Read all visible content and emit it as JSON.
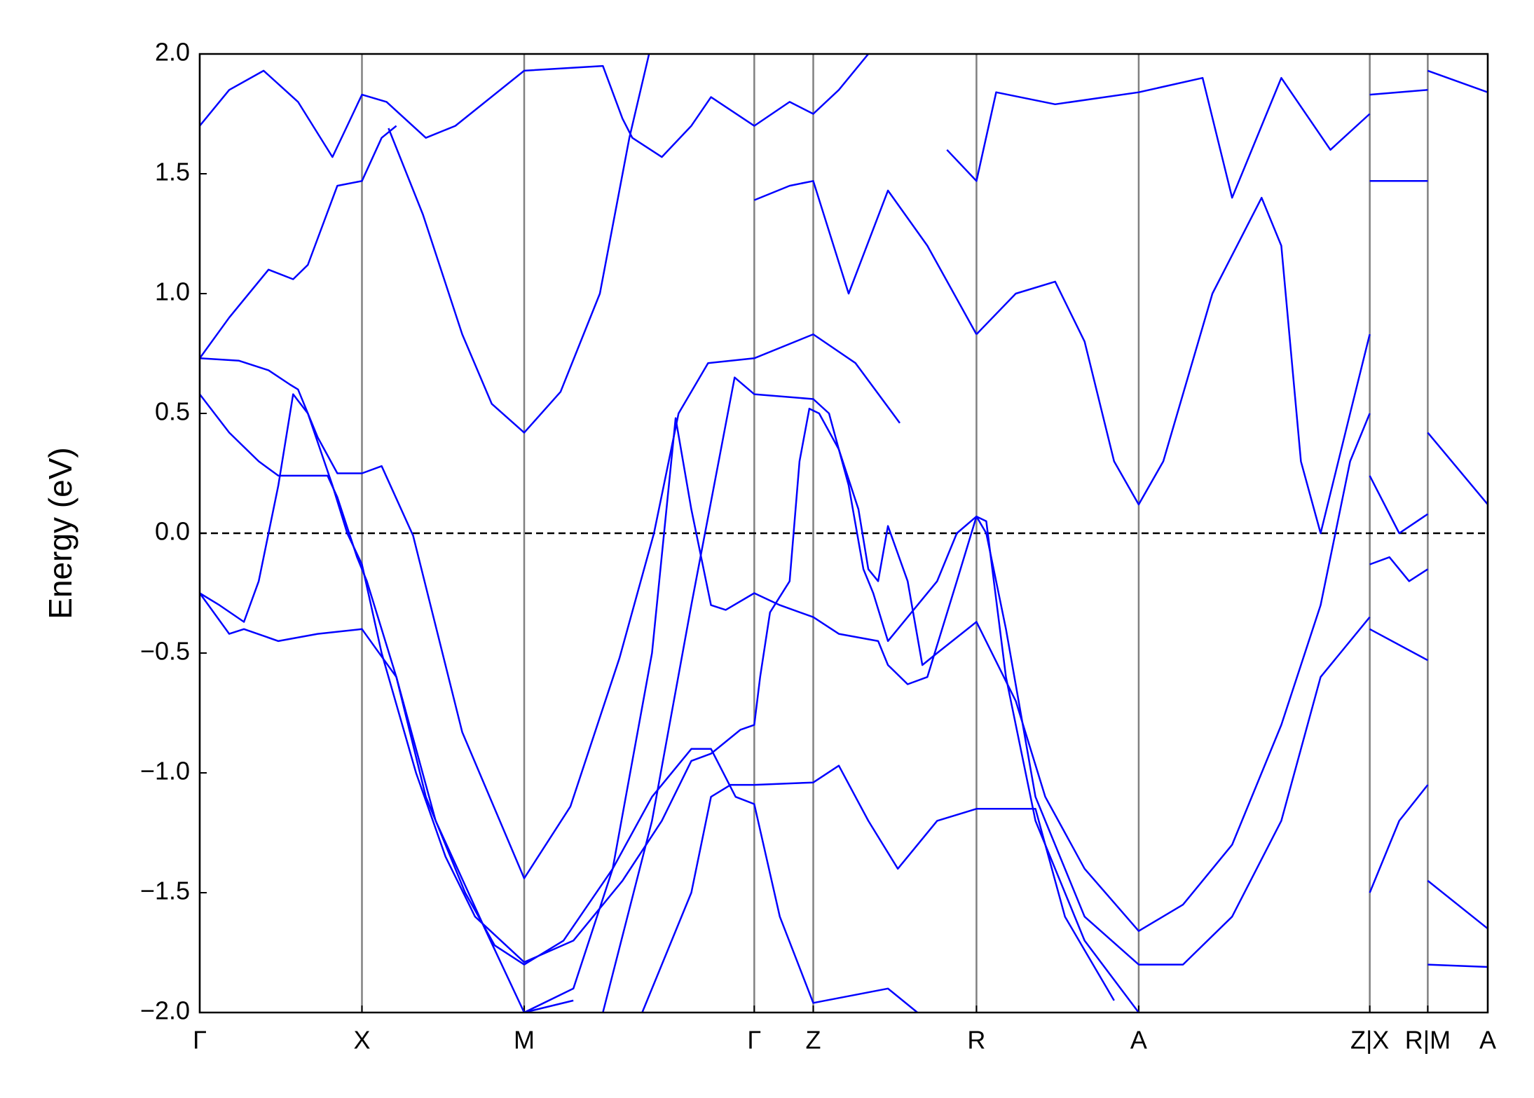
{
  "chart_data": {
    "type": "line",
    "ylabel": "Energy (eV)",
    "color": "#0000ff",
    "xlim": [
      0,
      1.31
    ],
    "ylim": [
      -2.0,
      2.0
    ],
    "xticks": [
      {
        "value": 0,
        "label": "Γ"
      },
      {
        "value": 0.165,
        "label": "X"
      },
      {
        "value": 0.33,
        "label": "M"
      },
      {
        "value": 0.564,
        "label": "Γ"
      },
      {
        "value": 0.624,
        "label": "Z"
      },
      {
        "value": 0.79,
        "label": "R"
      },
      {
        "value": 0.955,
        "label": "A"
      },
      {
        "value": 1.19,
        "label": "Z|X"
      },
      {
        "value": 1.249,
        "label": "R|M"
      },
      {
        "value": 1.31,
        "label": "A"
      }
    ],
    "yticks": [
      {
        "value": 2.0,
        "label": "2.0"
      },
      {
        "value": 1.5,
        "label": "1.5"
      },
      {
        "value": 1.0,
        "label": "1.0"
      },
      {
        "value": 0.5,
        "label": "0.5"
      },
      {
        "value": 0.0,
        "label": "0.0"
      },
      {
        "value": -0.5,
        "label": "−0.5"
      },
      {
        "value": -1.0,
        "label": "−1.0"
      },
      {
        "value": -1.5,
        "label": "−1.5"
      },
      {
        "value": -2.0,
        "label": "−2.0"
      }
    ],
    "grid": true,
    "hline": 0,
    "series": [
      {
        "x": [
          0.192,
          0.227,
          0.267,
          0.297,
          0.33,
          0.367,
          0.407,
          0.437,
          0.457
        ],
        "values": [
          1.69,
          1.33,
          0.83,
          0.54,
          0.42,
          0.59,
          1.0,
          1.65,
          2.0
        ]
      },
      {
        "x": [
          0,
          0.04,
          0.07,
          0.092,
          0.1,
          0.12,
          0.14,
          0.165,
          0.185,
          0.217,
          0.267,
          0.33,
          0.377,
          0.427,
          0.462,
          0.487,
          0.517,
          0.564,
          0.624,
          0.667,
          0.712
        ],
        "values": [
          0.73,
          0.72,
          0.68,
          0.62,
          0.6,
          0.4,
          0.25,
          0.25,
          0.28,
          -0.01,
          -0.83,
          -1.44,
          -1.14,
          -0.52,
          0,
          0.5,
          0.71,
          0.73,
          0.83,
          0.71,
          0.46
        ]
      },
      {
        "x": [
          0,
          0.03,
          0.06,
          0.08,
          0.13,
          0.14,
          0.16,
          0.17,
          0.2,
          0.23,
          0.27,
          0.3,
          0.33,
          0.37,
          0.42,
          0.46,
          0.5,
          0.52,
          0.545,
          0.564,
          0.59,
          0.624,
          0.7,
          0.73
        ],
        "values": [
          0.58,
          0.42,
          0.3,
          0.24,
          0.24,
          0.15,
          -0.1,
          -0.2,
          -0.6,
          -1.1,
          -1.5,
          -1.72,
          -1.8,
          -1.7,
          -1.4,
          -1.1,
          -0.9,
          -0.9,
          -1.1,
          -1.13,
          -1.6,
          -1.96,
          -1.9,
          -2.0
        ]
      },
      {
        "x": [
          0,
          0.02,
          0.045,
          0.06,
          0.08,
          0.095,
          0.11,
          0.135,
          0.15,
          0.165,
          0.185,
          0.22,
          0.25,
          0.28,
          0.33,
          0.38,
          0.43,
          0.47,
          0.5,
          0.52,
          0.55,
          0.564,
          0.57,
          0.58,
          0.6,
          0.61,
          0.62,
          0.63,
          0.65,
          0.67,
          0.68,
          0.69,
          0.7,
          0.72,
          0.735,
          0.75,
          0.79,
          0.83,
          0.86,
          0.9,
          0.955,
          1.0,
          1.05,
          1.1,
          1.14,
          1.17,
          1.19
        ],
        "values": [
          -0.25,
          -0.3,
          -0.37,
          -0.2,
          0.2,
          0.58,
          0.5,
          0.2,
          0,
          -0.13,
          -0.5,
          -1.0,
          -1.35,
          -1.6,
          -1.79,
          -1.7,
          -1.45,
          -1.2,
          -0.95,
          -0.92,
          -0.82,
          -0.8,
          -0.6,
          -0.33,
          -0.2,
          0.3,
          0.52,
          0.5,
          0.35,
          0.1,
          -0.15,
          -0.2,
          0.03,
          -0.2,
          -0.55,
          -0.5,
          -0.37,
          -0.7,
          -1.1,
          -1.4,
          -1.66,
          -1.55,
          -1.3,
          -0.8,
          -0.3,
          0.3,
          0.5
        ]
      },
      {
        "x": [
          0,
          0.03,
          0.045,
          0.08,
          0.12,
          0.165,
          0.2,
          0.24,
          0.29,
          0.33,
          0.38
        ],
        "values": [
          -0.25,
          -0.42,
          -0.4,
          -0.45,
          -0.42,
          -0.4,
          -0.6,
          -1.2,
          -1.65,
          -2.0,
          -1.95
        ]
      },
      {
        "x": [
          0.33,
          0.38,
          0.42,
          0.46,
          0.484,
          0.5,
          0.52,
          0.535,
          0.564,
          0.59,
          0.624,
          0.65,
          0.69,
          0.7,
          0.72,
          0.74,
          0.77,
          0.79,
          0.8,
          0.82,
          0.85,
          0.9,
          0.955,
          1.0,
          1.05,
          1.1,
          1.14,
          1.19
        ],
        "values": [
          -2.0,
          -1.9,
          -1.4,
          -0.5,
          0.48,
          0.1,
          -0.3,
          -0.32,
          -0.25,
          -0.3,
          -0.35,
          -0.42,
          -0.45,
          -0.55,
          -0.63,
          -0.6,
          -0.2,
          0.07,
          0.0,
          -0.4,
          -1.1,
          -1.6,
          -1.8,
          -1.8,
          -1.6,
          -1.2,
          -0.6,
          -0.35
        ]
      },
      {
        "x": [
          0.41,
          0.46,
          0.5,
          0.544,
          0.564,
          0.624,
          0.64,
          0.66,
          0.675,
          0.685,
          0.7,
          0.75,
          0.77,
          0.79,
          0.8,
          0.82,
          0.85,
          0.9,
          0.955
        ],
        "values": [
          -2.0,
          -1.2,
          -0.3,
          0.65,
          0.58,
          0.56,
          0.5,
          0.2,
          -0.15,
          -0.25,
          -0.45,
          -0.2,
          0.0,
          0.07,
          0.05,
          -0.6,
          -1.2,
          -1.7,
          -2.0
        ]
      },
      {
        "x": [
          0.45,
          0.5,
          0.52,
          0.54,
          0.564,
          0.624,
          0.65,
          0.68,
          0.71,
          0.75,
          0.79,
          0.85,
          0.88,
          0.93
        ],
        "values": [
          -2.0,
          -1.5,
          -1.1,
          -1.05,
          -1.05,
          -1.04,
          -0.97,
          -1.2,
          -1.4,
          -1.2,
          -1.15,
          -1.15,
          -1.6,
          -1.95
        ]
      },
      {
        "x": [
          0,
          0.03,
          0.065,
          0.1,
          0.135,
          0.15,
          0.165,
          0.19,
          0.23,
          0.26,
          0.33,
          0.41,
          0.43,
          0.44,
          0.47,
          0.5,
          0.52,
          0.564,
          0.6,
          0.624,
          0.65,
          0.68
        ],
        "values": [
          1.7,
          1.85,
          1.93,
          1.8,
          1.57,
          1.7,
          1.83,
          1.8,
          1.65,
          1.7,
          1.93,
          1.95,
          1.73,
          1.65,
          1.57,
          1.7,
          1.82,
          1.7,
          1.8,
          1.75,
          1.85,
          2.0
        ]
      },
      {
        "x": [
          0,
          0.03,
          0.07,
          0.095,
          0.11,
          0.14,
          0.165,
          0.185,
          0.2
        ],
        "values": [
          0.73,
          0.9,
          1.1,
          1.06,
          1.12,
          1.45,
          1.47,
          1.65,
          1.7
        ]
      },
      {
        "x": [
          0.79,
          0.83,
          0.87,
          0.9,
          0.93,
          0.955,
          0.98,
          1.03,
          1.08,
          1.1,
          1.12,
          1.14,
          1.17,
          1.19
        ],
        "values": [
          0.83,
          1.0,
          1.05,
          0.8,
          0.3,
          0.12,
          0.3,
          1.0,
          1.4,
          1.2,
          0.3,
          0.0,
          0.5,
          0.83
        ]
      },
      {
        "x": [
          0.564,
          0.6,
          0.624,
          0.66,
          0.7,
          0.74,
          0.79
        ],
        "values": [
          1.39,
          1.45,
          1.47,
          1.0,
          1.43,
          1.2,
          0.83
        ]
      },
      {
        "x": [
          0.76,
          0.79,
          0.81,
          0.87,
          0.955,
          1.02,
          1.05,
          1.1,
          1.15,
          1.19
        ],
        "values": [
          1.6,
          1.47,
          1.84,
          1.79,
          1.84,
          1.9,
          1.4,
          1.9,
          1.6,
          1.75
        ]
      },
      {
        "x": [
          1.19,
          1.21,
          1.23,
          1.249
        ],
        "values": [
          -0.13,
          -0.1,
          -0.2,
          -0.15
        ]
      },
      {
        "x": [
          1.19,
          1.22,
          1.249
        ],
        "values": [
          0.24,
          0.0,
          0.08
        ]
      },
      {
        "x": [
          1.19,
          1.249
        ],
        "values": [
          -0.4,
          -0.53
        ]
      },
      {
        "x": [
          1.19,
          1.249
        ],
        "values": [
          1.47,
          1.47
        ]
      },
      {
        "x": [
          1.19,
          1.249
        ],
        "values": [
          1.83,
          1.85
        ]
      },
      {
        "x": [
          1.19,
          1.22,
          1.249
        ],
        "values": [
          -1.5,
          -1.2,
          -1.05
        ]
      },
      {
        "x": [
          1.249,
          1.31
        ],
        "values": [
          0.42,
          0.12
        ]
      },
      {
        "x": [
          1.249,
          1.31
        ],
        "values": [
          1.93,
          1.84
        ]
      },
      {
        "x": [
          1.249,
          1.31
        ],
        "values": [
          -1.45,
          -1.65
        ]
      },
      {
        "x": [
          1.249,
          1.31
        ],
        "values": [
          -1.8,
          -1.81
        ]
      }
    ]
  }
}
